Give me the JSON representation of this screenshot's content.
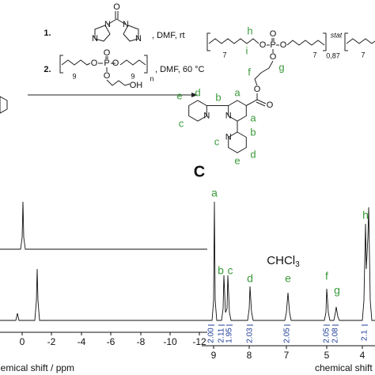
{
  "reaction_scheme": {
    "step1": {
      "number": "1.",
      "conditions": ", DMF, rt",
      "labels": [
        "O",
        "N",
        "N",
        "N",
        "N"
      ]
    },
    "step2": {
      "number": "2.",
      "conditions": ", DMF, 60 °C",
      "labels": [
        "9",
        "O",
        "P",
        "O",
        "O",
        "9",
        "n",
        "O",
        "OH"
      ]
    },
    "product": {
      "labels": [
        "7",
        "i",
        "h",
        "O",
        "P",
        "O",
        "O",
        "O",
        "7",
        "stat",
        "0,87",
        "7",
        "g",
        "f",
        "O",
        "O",
        "e",
        "d",
        "c",
        "b",
        "a",
        "N",
        "a",
        "N",
        "b",
        "c",
        "N",
        "e",
        "d"
      ]
    }
  },
  "panel_left": {
    "x_ticks": [
      "0",
      "-2",
      "-4",
      "-6",
      "-8",
      "-10",
      "-12"
    ],
    "x_axis_label": "chemical shift / ppm"
  },
  "panel_c": {
    "label": "C",
    "peak_labels": [
      "a",
      "b",
      "c",
      "d",
      "e",
      "f",
      "g",
      "h"
    ],
    "solvent": "CHCl",
    "solvent_subscript": "3",
    "integrals": [
      "2.00",
      "2.11",
      "1.95",
      "2.03",
      "2.05",
      "2.05",
      "2.08",
      "2.1"
    ],
    "x_ticks": [
      "9",
      "8",
      "7",
      "5",
      "4"
    ],
    "x_axis_label": "chemical shift / ppm"
  }
}
